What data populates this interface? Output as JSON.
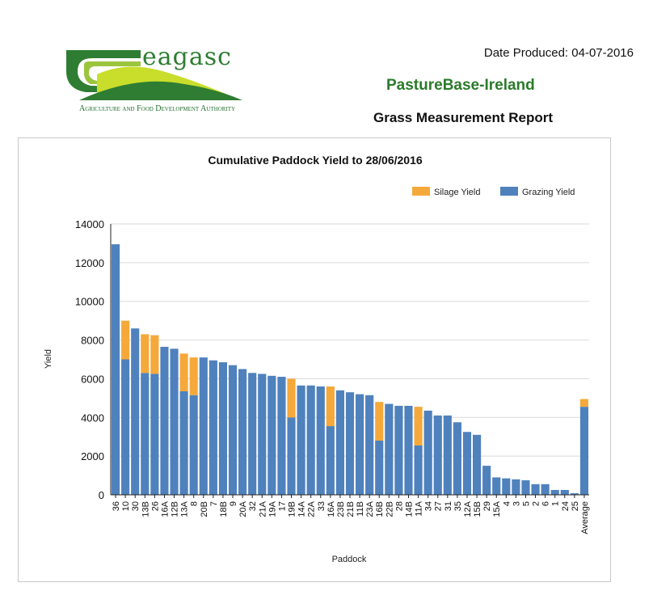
{
  "header": {
    "logo_word": "eagasc",
    "logo_tagline": "Agriculture and Food Development Authority",
    "date_produced": "Date Produced: 04-07-2016",
    "brand": "PastureBase-Ireland",
    "report_title": "Grass Measurement Report"
  },
  "colors": {
    "grazing": "#4f81bd",
    "silage": "#f5a93b",
    "brand_green": "#2a7b2a"
  },
  "chart_data": {
    "type": "bar",
    "stacked": true,
    "title": "Cumulative Paddock Yield to 28/06/2016",
    "xlabel": "Paddock",
    "ylabel": "Yield",
    "ylim": [
      0,
      14000
    ],
    "yticks": [
      0,
      2000,
      4000,
      6000,
      8000,
      10000,
      12000,
      14000
    ],
    "grid": true,
    "legend_position": "top-right",
    "categories": [
      "36",
      "10",
      "30",
      "13B",
      "26",
      "16A",
      "12B",
      "13A",
      "8",
      "20B",
      "7",
      "18B",
      "9",
      "20A",
      "32",
      "21A",
      "19A",
      "17",
      "19B",
      "14A",
      "22A",
      "33",
      "16A",
      "23B",
      "21B",
      "11B",
      "23A",
      "16B",
      "22B",
      "28",
      "14B",
      "11A",
      "34",
      "27",
      "31",
      "35",
      "12A",
      "15B",
      "29",
      "15A",
      "4",
      "3",
      "5",
      "2",
      "6",
      "1",
      "24",
      "25",
      "Average"
    ],
    "series": [
      {
        "name": "Grazing Yield",
        "values": [
          12950,
          7000,
          8600,
          6300,
          6250,
          7650,
          7550,
          5350,
          5150,
          7100,
          6950,
          6850,
          6700,
          6500,
          6300,
          6250,
          6150,
          6100,
          4000,
          5650,
          5650,
          5600,
          3550,
          5400,
          5300,
          5200,
          5150,
          2800,
          4700,
          4600,
          4600,
          2550,
          4350,
          4100,
          4100,
          3750,
          3250,
          3100,
          1500,
          900,
          850,
          800,
          750,
          550,
          550,
          250,
          250,
          80,
          4550
        ]
      },
      {
        "name": "Silage Yield",
        "values": [
          0,
          2000,
          0,
          2000,
          2000,
          0,
          0,
          1950,
          1950,
          0,
          0,
          0,
          0,
          0,
          0,
          0,
          0,
          0,
          2000,
          0,
          0,
          0,
          2050,
          0,
          0,
          0,
          0,
          2000,
          0,
          0,
          0,
          2000,
          0,
          0,
          0,
          0,
          0,
          0,
          0,
          0,
          0,
          0,
          0,
          0,
          0,
          0,
          0,
          0,
          400
        ]
      }
    ]
  }
}
